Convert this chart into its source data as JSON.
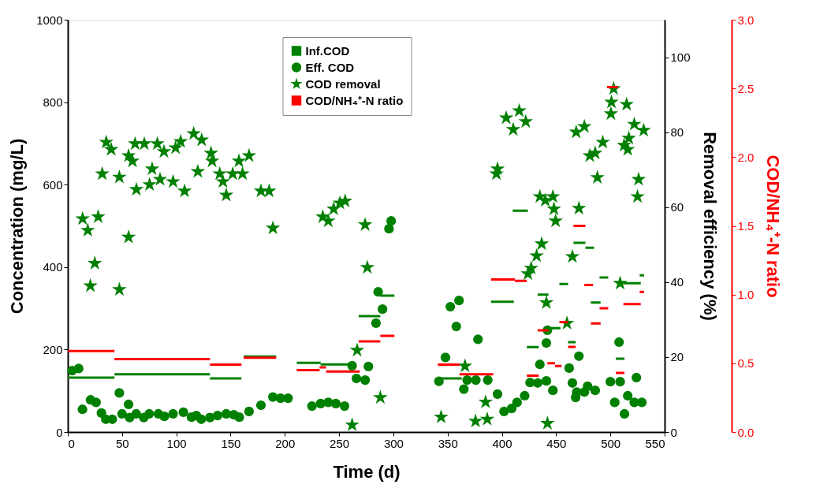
{
  "chart_data": {
    "type": "scatter",
    "xlabel": "Time (d)",
    "ylabel": "Concentration (mg/L)",
    "y2label": "Removal efficiency (%)",
    "y3label": "COD/NH₄⁺-N ratio",
    "xlim": [
      0,
      550
    ],
    "xticks": [
      0,
      50,
      100,
      150,
      200,
      250,
      300,
      350,
      400,
      450,
      500,
      550
    ],
    "ylim": [
      0,
      1000
    ],
    "yticks": [
      0,
      200,
      400,
      600,
      800,
      1000
    ],
    "y2lim": [
      0,
      110
    ],
    "y2ticks": [
      0,
      20,
      40,
      60,
      80,
      100
    ],
    "y3lim": [
      0,
      3.0
    ],
    "y3ticks": [
      {
        "value": 0,
        "label": "0.0"
      },
      0.5,
      {
        "value": 1,
        "label": "1.0"
      },
      1.5,
      {
        "value": 2,
        "label": "2.0"
      },
      2.5,
      {
        "value": 3,
        "label": "3.0"
      }
    ],
    "legend": "top",
    "grid": false,
    "series": [
      {
        "name": "Inf.COD",
        "type": "line",
        "marker": "none",
        "color": "#008000",
        "x": [
          0,
          43,
          null,
          43,
          131,
          null,
          131,
          160,
          null,
          162,
          192,
          null,
          211,
          233,
          null,
          233,
          265,
          null,
          268,
          288,
          null,
          288,
          301,
          null,
          341,
          363,
          null,
          390,
          411,
          null,
          410,
          424,
          null,
          423,
          434,
          null,
          433,
          443,
          null,
          443,
          454,
          null,
          453,
          461,
          null,
          461,
          468,
          null,
          466,
          477,
          null,
          477,
          485,
          null,
          482,
          491,
          null,
          490,
          498,
          null,
          505,
          513,
          null,
          512,
          528,
          null,
          527,
          531
        ],
        "values": [
          132,
          132,
          null,
          140,
          140,
          null,
          130,
          130,
          null,
          183,
          183,
          null,
          168,
          168,
          null,
          164,
          164,
          null,
          281,
          281,
          null,
          331,
          331,
          null,
          130,
          130,
          null,
          316,
          316,
          null,
          537,
          537,
          null,
          206,
          206,
          null,
          333,
          333,
          null,
          252,
          252,
          null,
          359,
          359,
          null,
          218,
          218,
          null,
          459,
          459,
          null,
          447,
          447,
          null,
          314,
          314,
          null,
          375,
          375,
          null,
          178,
          178,
          null,
          361,
          361,
          null,
          380,
          380
        ]
      },
      {
        "name": "Eff. COD",
        "marker": "circle",
        "color": "#008000",
        "x": [
          4,
          10,
          13.5,
          21,
          26,
          31,
          35,
          41,
          47.5,
          50,
          56,
          57,
          63,
          70,
          75,
          83.5,
          89,
          97,
          106.5,
          114,
          118.5,
          123,
          131,
          138,
          146,
          153,
          158,
          167,
          178,
          189,
          196,
          203,
          225,
          233,
          240,
          247,
          255,
          262,
          266,
          274,
          277,
          284,
          286,
          290,
          296,
          298,
          342,
          348,
          352.5,
          358,
          360.5,
          365,
          368,
          376,
          378,
          387,
          396,
          402,
          409,
          414,
          421,
          426,
          433,
          435,
          441,
          441,
          442,
          447,
          462,
          465,
          468,
          469,
          471,
          476,
          479,
          486,
          500,
          504,
          508,
          509,
          513,
          516,
          522,
          524,
          529
        ],
        "values": [
          149,
          154,
          55,
          78,
          72,
          46,
          31,
          31,
          95,
          44,
          67,
          35,
          44,
          35,
          44,
          44,
          38,
          44,
          48,
          36,
          40,
          31,
          35,
          40,
          44,
          42,
          36,
          50,
          65,
          85,
          82,
          82,
          63,
          69,
          72,
          69,
          63,
          161,
          130,
          126,
          159,
          264,
          340,
          298,
          493,
          512,
          123,
          181,
          304,
          256,
          319,
          104,
          126,
          126,
          225,
          126,
          92,
          50,
          57,
          72,
          88,
          120,
          119,
          164,
          216,
          124,
          247,
          101,
          155,
          119,
          84,
          97,
          184,
          97,
          111,
          101,
          122,
          72,
          218,
          122,
          44,
          88,
          72,
          132,
          72
        ]
      },
      {
        "name": "COD removal",
        "marker": "star",
        "axis": "y2",
        "color": "#008000",
        "x": [
          13.6,
          18.4,
          20.8,
          24.9,
          28,
          31.7,
          35.4,
          40,
          47.5,
          47.5,
          56,
          56,
          59.6,
          62,
          63.2,
          70.5,
          75.3,
          77.7,
          82.5,
          85,
          88.6,
          97,
          99.3,
          104,
          107.6,
          116,
          119.8,
          123.4,
          132,
          133,
          140,
          143,
          146,
          152,
          157.7,
          161,
          167,
          178,
          185.5,
          189,
          235,
          240,
          245,
          250.7,
          255.6,
          262,
          266.6,
          274,
          276,
          288,
          344,
          366,
          375.7,
          385,
          386.5,
          395,
          396,
          404,
          410.5,
          416,
          422,
          424,
          427,
          432,
          435,
          436.7,
          440,
          441,
          442,
          447,
          448,
          449.5,
          460,
          465,
          468.5,
          471,
          476,
          481,
          486,
          488,
          493,
          500.5,
          501,
          503,
          509,
          512.6,
          515,
          516,
          517,
          522,
          525,
          526,
          530.7
        ],
        "values": [
          56.9,
          53.8,
          39,
          45,
          57.4,
          68.9,
          77.3,
          75.4,
          68,
          38,
          73.7,
          52,
          72.3,
          76.9,
          64.7,
          76.9,
          66,
          70.2,
          76.9,
          67.4,
          74.8,
          66.8,
          75.8,
          77.5,
          64.3,
          79.6,
          69.5,
          77.9,
          74.4,
          72.3,
          68.9,
          66.8,
          63.2,
          68.9,
          72.3,
          68.9,
          73.7,
          64.3,
          64.3,
          54.4,
          57.4,
          56.3,
          59.5,
          61.1,
          61.6,
          1.9,
          21.8,
          55.3,
          43.9,
          9.2,
          4,
          17.6,
          2.9,
          8,
          3.4,
          68.9,
          70.2,
          83.8,
          80.7,
          85.7,
          82.8,
          42.2,
          43.7,
          47,
          62.8,
          50.2,
          61.8,
          34.5,
          2.3,
          62.8,
          59.5,
          56.3,
          29,
          46.8,
          80,
          59.7,
          81.5,
          73.7,
          74.4,
          67.9,
          77.3,
          84.9,
          88,
          91.6,
          39.7,
          76.5,
          87.4,
          75.4,
          78.4,
          82.1,
          62.8,
          67.4,
          80.5
        ]
      },
      {
        "name": "COD/NH₄⁺-N ratio",
        "type": "line",
        "marker": "none",
        "axis": "y3",
        "color": "#ff0000",
        "x": [
          0,
          43,
          null,
          43,
          131,
          null,
          131,
          160,
          null,
          162,
          192,
          null,
          211,
          232,
          null,
          232,
          238,
          null,
          238,
          269,
          null,
          268,
          288,
          null,
          288,
          301,
          null,
          341,
          361,
          null,
          361,
          392,
          null,
          390,
          412,
          null,
          412,
          423,
          null,
          423,
          434,
          null,
          433,
          443,
          null,
          442,
          449,
          null,
          449,
          455,
          null,
          453,
          461,
          null,
          461,
          468,
          null,
          466,
          477,
          null,
          476,
          484,
          null,
          482,
          491,
          null,
          490,
          498,
          null,
          497,
          507,
          null,
          505,
          513,
          null,
          512,
          528,
          null,
          527,
          531
        ],
        "values": [
          0.59,
          0.59,
          null,
          0.53,
          0.53,
          null,
          0.49,
          0.49,
          null,
          0.54,
          0.54,
          null,
          0.45,
          0.45,
          null,
          0.47,
          0.47,
          null,
          0.44,
          0.44,
          null,
          0.66,
          0.66,
          null,
          0.7,
          0.7,
          null,
          0.49,
          0.49,
          null,
          0.42,
          0.42,
          null,
          1.11,
          1.11,
          null,
          1.1,
          1.1,
          null,
          0.41,
          0.41,
          null,
          0.74,
          0.74,
          null,
          0.5,
          0.5,
          null,
          0.48,
          0.48,
          null,
          0.8,
          0.8,
          null,
          0.62,
          0.62,
          null,
          1.5,
          1.5,
          null,
          1.07,
          1.07,
          null,
          0.79,
          0.79,
          null,
          0.9,
          0.9,
          null,
          2.51,
          2.51,
          null,
          0.43,
          0.43,
          null,
          0.93,
          0.93,
          null,
          1.02,
          1.02
        ]
      }
    ]
  }
}
